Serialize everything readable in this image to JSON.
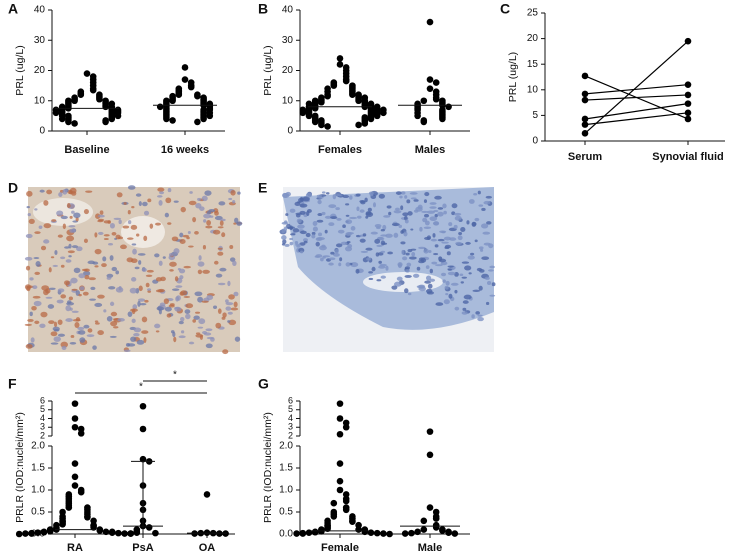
{
  "chart_data": [
    {
      "label": "A",
      "type": "strip",
      "ylabel": "PRL (ug/L)",
      "categories": [
        "Baseline",
        "16 weeks"
      ],
      "values": [
        [
          19,
          18,
          17,
          16,
          15,
          14,
          13.5,
          13,
          12.5,
          12,
          12,
          11.5,
          11,
          11,
          10.5,
          10.5,
          10,
          10,
          10,
          9.5,
          9.5,
          9,
          9,
          9,
          8.5,
          8.5,
          8,
          8,
          8,
          8,
          7.5,
          7.5,
          7.5,
          7,
          7,
          7,
          7,
          6.5,
          6.5,
          6.5,
          6,
          6,
          6,
          6,
          5.5,
          5.5,
          5,
          5,
          5,
          5,
          4.5,
          4.5,
          4,
          4,
          4,
          3.5,
          3.5,
          3,
          3,
          2.5
        ],
        [
          21,
          17,
          16,
          15,
          14.5,
          14,
          13.5,
          13,
          12.5,
          12,
          12,
          11.5,
          11.5,
          11,
          11,
          10.5,
          10.5,
          10,
          10,
          10,
          9.5,
          9.5,
          9,
          9,
          9,
          8.5,
          8.5,
          8.5,
          8,
          8,
          8,
          7.5,
          7.5,
          7,
          7,
          7,
          6.5,
          6.5,
          6,
          6,
          6,
          5.5,
          5.5,
          5,
          5,
          5,
          4.5,
          4.5,
          4,
          4,
          3.5,
          3
        ]
      ],
      "medians": [
        7.5,
        8.5
      ],
      "ylim": [
        0,
        40
      ],
      "yticks": [
        0,
        10,
        20,
        30,
        40
      ]
    },
    {
      "label": "B",
      "type": "strip",
      "ylabel": "PRL (ug/L)",
      "categories": [
        "Females",
        "Males"
      ],
      "values": [
        [
          24,
          22,
          21,
          20,
          19,
          18,
          17,
          16.5,
          16,
          15.5,
          15,
          15,
          14.5,
          14,
          14,
          13.5,
          13,
          13,
          12.5,
          12,
          12,
          12,
          11.5,
          11.5,
          11,
          11,
          11,
          10.5,
          10.5,
          10,
          10,
          10,
          10,
          9.5,
          9.5,
          9.5,
          9,
          9,
          9,
          9,
          8.5,
          8.5,
          8.5,
          8,
          8,
          8,
          8,
          8,
          7.5,
          7.5,
          7.5,
          7.5,
          7,
          7,
          7,
          7,
          7,
          6.5,
          6.5,
          6.5,
          6.5,
          6,
          6,
          6,
          6,
          6,
          5.5,
          5.5,
          5.5,
          5,
          5,
          5,
          5,
          4.5,
          4.5,
          4.5,
          4,
          4,
          4,
          3.5,
          3.5,
          3.5,
          3,
          3,
          3,
          2.5,
          2.5,
          2,
          2,
          1.5
        ],
        [
          36,
          17,
          16,
          14,
          13,
          12,
          11,
          10.5,
          10,
          10,
          9.5,
          9,
          9,
          8.5,
          8.5,
          8,
          8,
          7.5,
          7,
          7,
          6.5,
          6,
          6,
          5.5,
          5,
          5,
          4.5,
          4,
          3.5,
          3
        ]
      ],
      "medians": [
        8,
        8.5
      ],
      "ylim": [
        0,
        40
      ],
      "yticks": [
        0,
        10,
        20,
        30,
        40
      ]
    },
    {
      "label": "C",
      "type": "line",
      "ylabel": "PRL (ug/L)",
      "categories": [
        "Serum",
        "Synovial fluid"
      ],
      "series": [
        {
          "values": [
            12.7,
            4.3
          ]
        },
        {
          "values": [
            9.2,
            11
          ]
        },
        {
          "values": [
            8,
            9
          ]
        },
        {
          "values": [
            4.3,
            7.3
          ]
        },
        {
          "values": [
            3.2,
            5.5
          ]
        },
        {
          "values": [
            1.5,
            19.5
          ]
        }
      ],
      "ylim": [
        0,
        25
      ],
      "yticks": [
        0,
        5,
        10,
        15,
        20,
        25
      ]
    },
    {
      "label": "F",
      "type": "strip",
      "ylabel": "PRLR (IOD:nuclei/mm²)",
      "categories": [
        "RA",
        "PsA",
        "OA"
      ],
      "values": [
        [
          5.7,
          4,
          3,
          2.8,
          2.3,
          1.6,
          1.3,
          1.1,
          1.0,
          0.95,
          0.9,
          0.85,
          0.8,
          0.75,
          0.7,
          0.65,
          0.6,
          0.6,
          0.55,
          0.5,
          0.5,
          0.45,
          0.4,
          0.4,
          0.38,
          0.35,
          0.3,
          0.3,
          0.28,
          0.25,
          0.22,
          0.2,
          0.2,
          0.18,
          0.15,
          0.15,
          0.12,
          0.1,
          0.1,
          0.1,
          0.08,
          0.08,
          0.06,
          0.05,
          0.05,
          0.05,
          0.04,
          0.03,
          0.03,
          0.02,
          0.02,
          0.01,
          0.01,
          0.01,
          0.01,
          0
        ],
        [
          5.4,
          2.8,
          1.7,
          1.65,
          1.1,
          0.7,
          0.55,
          0.3,
          0.18,
          0.15,
          0.1,
          0.05,
          0.03,
          0.02,
          0.01
        ],
        [
          0.9,
          0.03,
          0.02,
          0.02,
          0.01,
          0.01,
          0.01
        ]
      ],
      "medians": [
        0.1,
        0.18,
        0.02
      ],
      "intervals": [
        null,
        [
          0,
          1.65
        ],
        null
      ],
      "ylim": [
        0,
        2
      ],
      "yticks": [
        {
          "value": 0,
          "label": "0.0"
        },
        0.5,
        {
          "value": 1,
          "label": "1.0"
        },
        1.5,
        {
          "value": 2,
          "label": "2.0"
        }
      ],
      "ylim_upper": [
        2,
        6
      ],
      "yticks_upper": [
        2,
        3,
        4,
        5,
        6
      ],
      "annotations": [
        {
          "groups": [
            "RA",
            "OA"
          ],
          "label": "*"
        },
        {
          "groups": [
            "PsA",
            "OA"
          ],
          "label": "*"
        }
      ]
    },
    {
      "label": "G",
      "type": "strip",
      "ylabel": "PRLR (IOD:nuclei/mm²)",
      "categories": [
        "Female",
        "Male"
      ],
      "values": [
        [
          5.7,
          4,
          3.5,
          3,
          2.2,
          1.6,
          1.2,
          1.0,
          0.9,
          0.8,
          0.75,
          0.7,
          0.6,
          0.55,
          0.5,
          0.45,
          0.4,
          0.4,
          0.35,
          0.3,
          0.3,
          0.28,
          0.25,
          0.2,
          0.2,
          0.18,
          0.15,
          0.12,
          0.1,
          0.1,
          0.1,
          0.08,
          0.06,
          0.05,
          0.05,
          0.04,
          0.03,
          0.03,
          0.02,
          0.02,
          0.01,
          0.01,
          0.01,
          0
        ],
        [
          2.5,
          1.8,
          0.6,
          0.5,
          0.4,
          0.35,
          0.3,
          0.2,
          0.15,
          0.1,
          0.1,
          0.08,
          0.05,
          0.05,
          0.03,
          0.02,
          0.01,
          0.01
        ]
      ],
      "medians": [
        0.07,
        0.18
      ],
      "ylim": [
        0,
        2
      ],
      "yticks": [
        {
          "value": 0,
          "label": "0.0"
        },
        0.5,
        {
          "value": 1,
          "label": "1.0"
        },
        1.5,
        {
          "value": 2,
          "label": "2.0"
        }
      ],
      "ylim_upper": [
        2,
        6
      ],
      "yticks_upper": [
        2,
        3,
        4,
        5,
        6
      ]
    }
  ],
  "images": [
    {
      "label": "D"
    },
    {
      "label": "E"
    }
  ]
}
